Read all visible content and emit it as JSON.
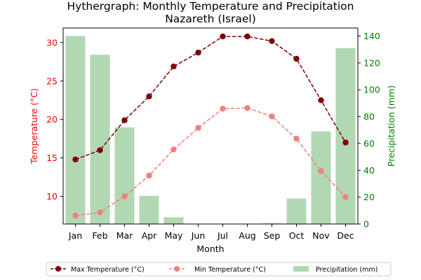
{
  "chart_data": {
    "type": "bar+line",
    "title_line1": "Hythergraph: Monthly Temperature and Precipitation",
    "title_line2": "Nazareth (Israel)",
    "xlabel": "Month",
    "ylabel_left": "Temperature (°C)",
    "ylabel_right": "Precipitation (mm)",
    "categories": [
      "Jan",
      "Feb",
      "Mar",
      "Apr",
      "May",
      "Jun",
      "Jul",
      "Aug",
      "Sep",
      "Oct",
      "Nov",
      "Dec"
    ],
    "ylim_left": [
      6.4,
      31.9
    ],
    "ylim_right": [
      0,
      146
    ],
    "yticks_left": [
      10,
      15,
      20,
      25,
      30
    ],
    "yticks_right": [
      0,
      20,
      40,
      60,
      80,
      100,
      120,
      140
    ],
    "series": [
      {
        "name": "Max Temperature (°C)",
        "kind": "line",
        "axis": "left",
        "color": "#800000",
        "linestyle": "dashed",
        "marker": "circle",
        "values": [
          14.8,
          16.0,
          19.9,
          23.0,
          26.9,
          28.7,
          30.8,
          30.8,
          30.2,
          27.9,
          22.5,
          17.0
        ]
      },
      {
        "name": "Min Temperature (°C)",
        "kind": "line",
        "axis": "left",
        "color": "#f08080",
        "linestyle": "dashed",
        "marker": "circle",
        "values": [
          7.5,
          7.9,
          10.0,
          12.7,
          16.1,
          18.9,
          21.4,
          21.5,
          20.4,
          17.5,
          13.3,
          9.9
        ]
      },
      {
        "name": "Precipitation (mm)",
        "kind": "bar",
        "axis": "right",
        "color": "#b1d8b2",
        "values": [
          140,
          126,
          72,
          21,
          5,
          0.3,
          0,
          0,
          0.5,
          19,
          69,
          131
        ]
      }
    ],
    "left_axis_color": "#ff0000",
    "right_axis_color": "#008000",
    "legend_position": "bottom-center",
    "grid": false
  }
}
